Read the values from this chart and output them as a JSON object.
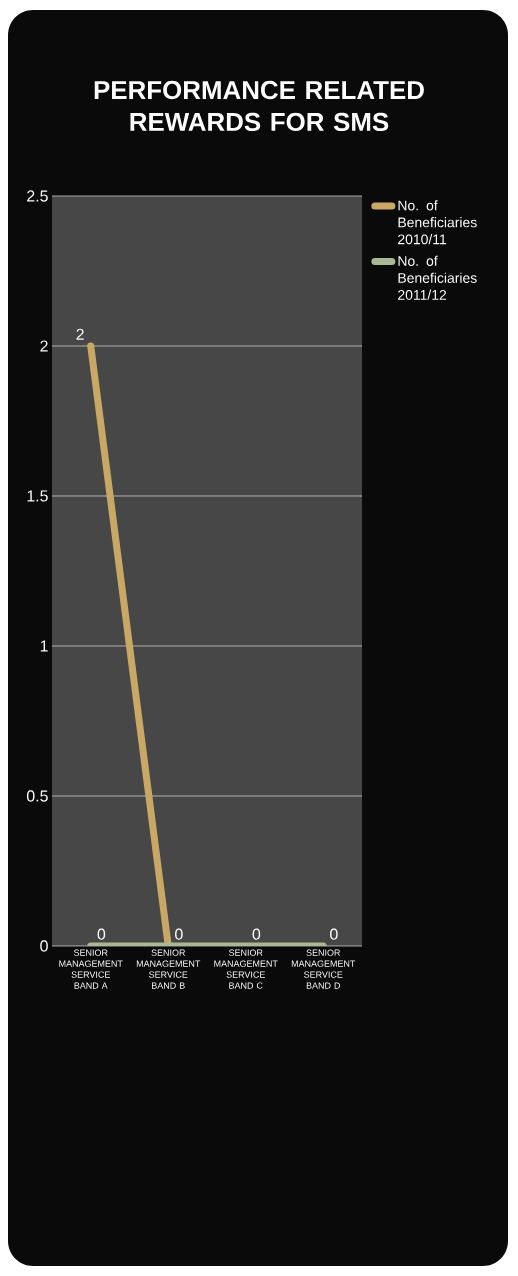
{
  "chart_data": {
    "type": "line",
    "title": "PERFORMANCE RELATED REWARDS FOR SMS",
    "categories": [
      "SENIOR MANAGEMENT SERVICE BAND A",
      "SENIOR MANAGEMENT SERVICE BAND B",
      "SENIOR MANAGEMENT SERVICE BAND C",
      "SENIOR MANAGEMENT SERVICE BAND D"
    ],
    "series": [
      {
        "name": "No. of Beneficiaries 2010/11",
        "color": "#c9a866",
        "values": [
          2,
          0,
          null,
          null
        ],
        "value_labels": [
          "2",
          null,
          null,
          null
        ]
      },
      {
        "name": "No. of Beneficiaries 2011/12",
        "color": "#a9b894",
        "values": [
          0,
          0,
          0,
          0
        ],
        "value_labels": [
          "0",
          "0",
          "0",
          "0"
        ]
      }
    ],
    "ylim": [
      0,
      2.5
    ],
    "yticks": [
      0,
      0.5,
      1,
      1.5,
      2,
      2.5
    ],
    "grid": "y",
    "legend": "right",
    "marker": "none",
    "line_style": "solid"
  }
}
